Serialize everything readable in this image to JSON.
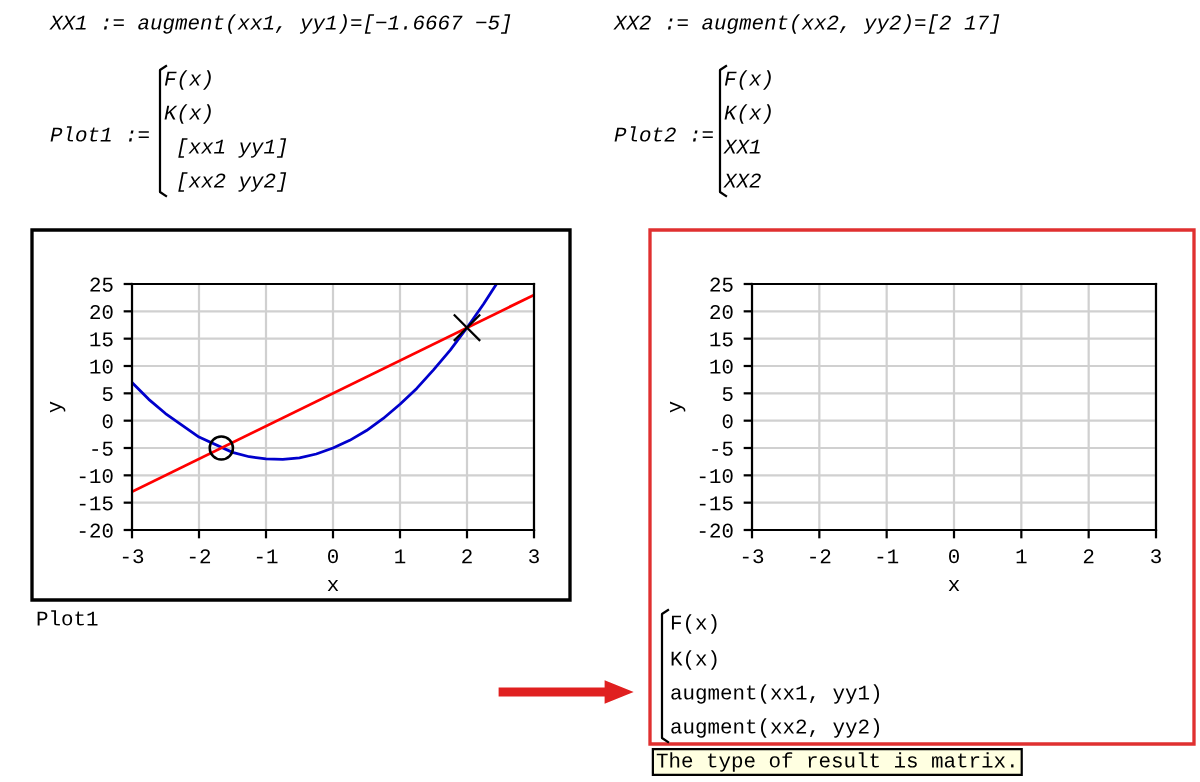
{
  "chart_data": [
    {
      "type": "line",
      "xlabel": "x",
      "ylabel": "y",
      "xlim": [
        -3,
        3
      ],
      "ylim": [
        -20,
        25
      ],
      "xticks": [
        -3,
        -2,
        -1,
        0,
        1,
        2,
        3
      ],
      "yticks": [
        -20,
        -15,
        -10,
        -5,
        0,
        5,
        10,
        15,
        20,
        25
      ],
      "grid": true,
      "legend": false,
      "series": [
        {
          "type": "line",
          "color": "#0000cc",
          "x": [
            -3,
            -2.75,
            -2.5,
            -2,
            -1.5,
            -1.25,
            -1,
            -0.75,
            -0.5,
            -0.25,
            0,
            0.25,
            0.5,
            0.75,
            1,
            1.25,
            1.5,
            1.75,
            2,
            2.25,
            2.44
          ],
          "values": [
            7,
            3.9,
            1.3,
            -3,
            -5.8,
            -6.6,
            -7,
            -7.1,
            -6.8,
            -6.1,
            -5,
            -3.6,
            -1.8,
            0.4,
            3,
            5.9,
            9.3,
            12.9,
            17,
            21.4,
            25
          ]
        },
        {
          "type": "line",
          "color": "#ff0000",
          "x": [
            -3,
            3
          ],
          "values": [
            -13,
            23
          ]
        },
        {
          "type": "scatter",
          "color": "#000000",
          "marker": "circle",
          "x": [
            -1.6667
          ],
          "values": [
            -5
          ]
        },
        {
          "type": "scatter",
          "color": "#000000",
          "marker": "cross",
          "x": [
            2
          ],
          "values": [
            17
          ]
        }
      ],
      "annotations": [
        "XX1 := augment(xx1, yy1)=[−1.6667 −5]",
        "Plot1 :=",
        "F(x)",
        "K(x)",
        "[xx1 yy1]",
        "[xx2 yy2]",
        "Plot1"
      ]
    },
    {
      "type": "line",
      "xlabel": "x",
      "ylabel": "y",
      "xlim": [
        -3,
        3
      ],
      "ylim": [
        -20,
        25
      ],
      "xticks": [
        -3,
        -2,
        -1,
        0,
        1,
        2,
        3
      ],
      "yticks": [
        -20,
        -15,
        -10,
        -5,
        0,
        5,
        10,
        15,
        20,
        25
      ],
      "grid": true,
      "legend": false,
      "annotations": [
        "XX2 := augment(xx2, yy2)=[2 17]",
        "Plot2 :=",
        "F(x)",
        "K(x)",
        "XX1",
        "XX2",
        "F(x)",
        "K(x)",
        "augment(xx1, yy1)",
        "augment(xx2, yy2)",
        "The type of result is matrix."
      ]
    }
  ]
}
